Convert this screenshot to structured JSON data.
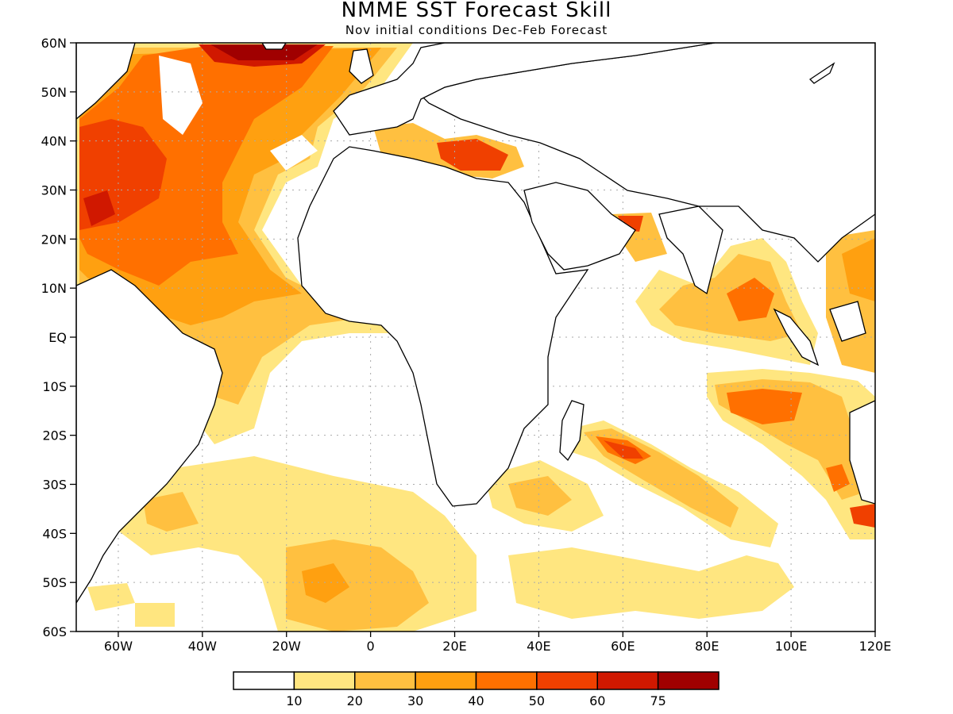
{
  "title": "NMME SST Forecast Skill",
  "subtitle": "Nov initial conditions  Dec-Feb Forecast",
  "lat_labels": [
    "60N",
    "50N",
    "40N",
    "30N",
    "20N",
    "10N",
    "EQ",
    "10S",
    "20S",
    "30S",
    "40S",
    "50S",
    "60S"
  ],
  "lon_labels": [
    "60W",
    "40W",
    "20W",
    "0",
    "20E",
    "40E",
    "60E",
    "80E",
    "100E",
    "120E"
  ],
  "colorbar": {
    "colors": [
      "#ffffff",
      "#ffe680",
      "#ffc040",
      "#ffa010",
      "#ff7000",
      "#f04000",
      "#d01800",
      "#a00000"
    ],
    "labels": [
      "10",
      "20",
      "30",
      "40",
      "50",
      "60",
      "75"
    ]
  },
  "colors": {
    "land_outline": "#000000",
    "grid": "#aaaaaa"
  }
}
